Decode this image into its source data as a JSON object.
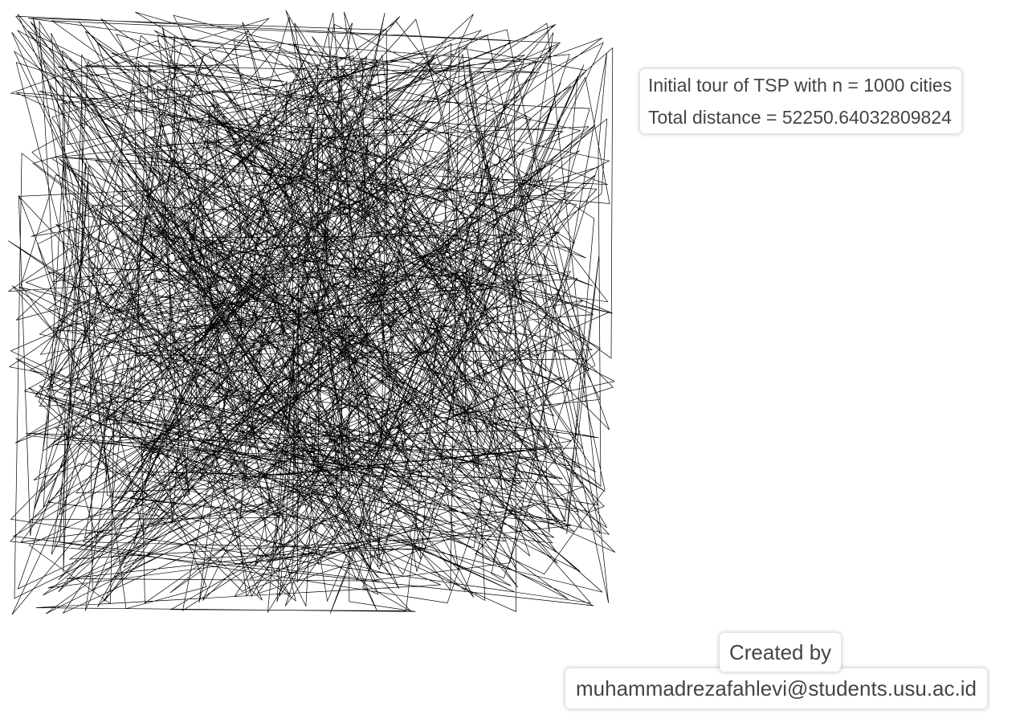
{
  "info": {
    "tour_label": "Initial tour of TSP with n = 1000 cities",
    "distance_label": "Total distance = 52250.64032809824"
  },
  "credits": {
    "created_by": "Created by",
    "email": "muhammadrezafahlevi@students.usu.ac.id"
  },
  "tour": {
    "city_count": 1000,
    "line_color": "#000000",
    "random_order": true
  }
}
